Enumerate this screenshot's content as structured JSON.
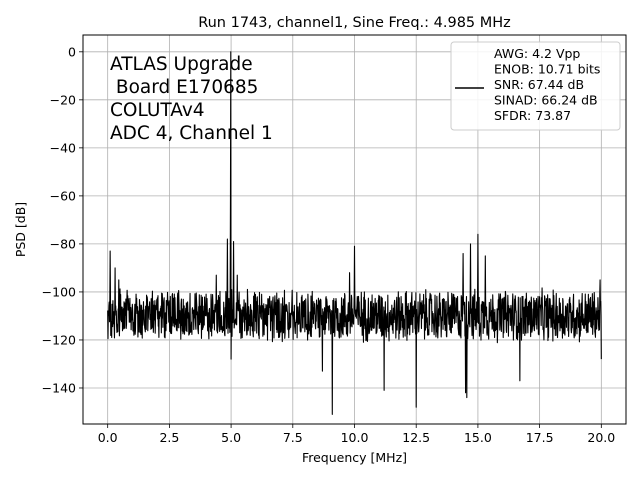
{
  "chart_data": {
    "type": "line",
    "title": "Run 1743, channel1, Sine Freq.: 4.985 MHz",
    "xlabel": "Frequency [MHz]",
    "ylabel": "PSD [dB]",
    "xlim": [
      -1.0,
      21.0
    ],
    "ylim": [
      -155,
      7
    ],
    "xticks": [
      0.0,
      2.5,
      5.0,
      7.5,
      10.0,
      12.5,
      15.0,
      17.5,
      20.0
    ],
    "xtick_labels": [
      "0.0",
      "2.5",
      "5.0",
      "7.5",
      "10.0",
      "12.5",
      "15.0",
      "17.5",
      "20.0"
    ],
    "yticks": [
      0,
      -20,
      -40,
      -60,
      -80,
      -100,
      -120,
      -140
    ],
    "ytick_labels": [
      "0",
      "−20",
      "−40",
      "−60",
      "−80",
      "−100",
      "−120",
      "−140"
    ],
    "grid": true,
    "line_color": "#000000",
    "annotation_lines": [
      "ATLAS Upgrade",
      " Board E170685",
      "COLUTAv4",
      "ADC 4, Channel 1"
    ],
    "legend": {
      "placement": "top-right",
      "lines": [
        "AWG: 4.2 Vpp",
        "ENOB: 10.71 bits",
        "SNR: 67.44 dB",
        "SINAD: 66.24 dB",
        "SFDR: 73.87"
      ]
    },
    "noise_floor_db": -110,
    "noise_band_db": [
      -122,
      -98
    ],
    "peaks": [
      {
        "x": 0.1,
        "y": -83
      },
      {
        "x": 0.3,
        "y": -90
      },
      {
        "x": 0.45,
        "y": -95
      },
      {
        "x": 4.4,
        "y": -93
      },
      {
        "x": 4.85,
        "y": -78
      },
      {
        "x": 4.985,
        "y": 0
      },
      {
        "x": 5.1,
        "y": -79
      },
      {
        "x": 5.25,
        "y": -93
      },
      {
        "x": 10.0,
        "y": -81
      },
      {
        "x": 9.8,
        "y": -92
      },
      {
        "x": 14.4,
        "y": -84
      },
      {
        "x": 14.7,
        "y": -80
      },
      {
        "x": 15.0,
        "y": -76
      },
      {
        "x": 15.3,
        "y": -85
      },
      {
        "x": 19.95,
        "y": -95
      }
    ],
    "dips": [
      {
        "x": 9.1,
        "y": -151
      },
      {
        "x": 11.2,
        "y": -141
      },
      {
        "x": 12.5,
        "y": -148
      },
      {
        "x": 14.5,
        "y": -142
      },
      {
        "x": 14.55,
        "y": -144
      },
      {
        "x": 8.7,
        "y": -133
      },
      {
        "x": 16.7,
        "y": -137
      },
      {
        "x": 5.0,
        "y": -128
      },
      {
        "x": 20.0,
        "y": -128
      }
    ]
  }
}
